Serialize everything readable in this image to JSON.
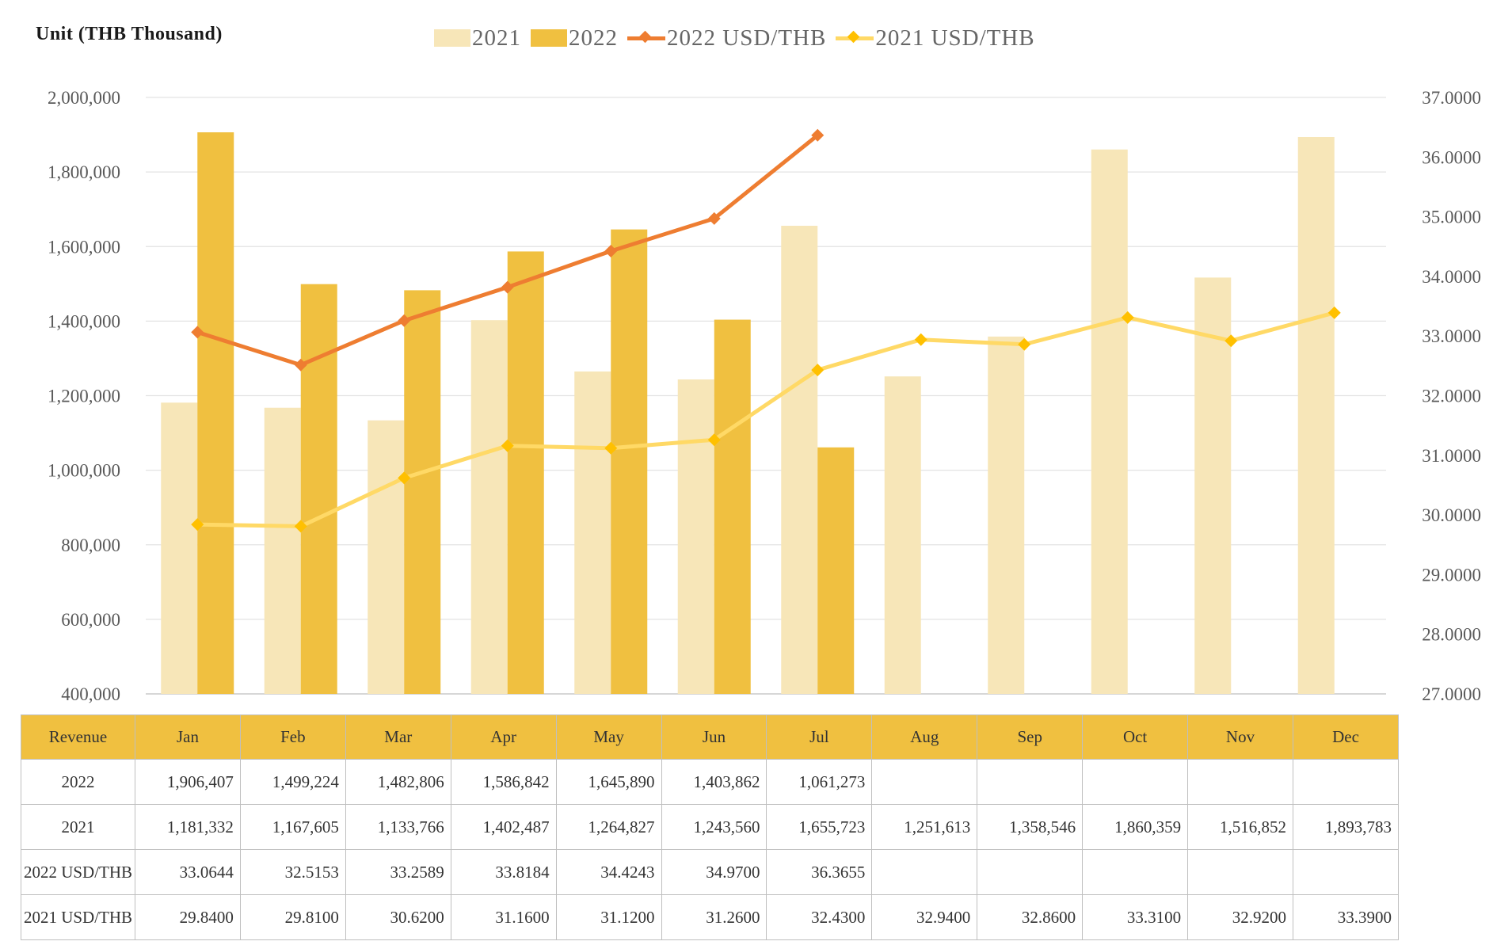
{
  "unit_label": "Unit (THB Thousand)",
  "chart_data": {
    "type": "bar",
    "categories": [
      "Jan",
      "Feb",
      "Mar",
      "Apr",
      "May",
      "Jun",
      "Jul",
      "Aug",
      "Sep",
      "Oct",
      "Nov",
      "Dec"
    ],
    "series": [
      {
        "name": "2021",
        "kind": "bar",
        "color": "#f7e6b8",
        "values": [
          1181332,
          1167605,
          1133766,
          1402487,
          1264827,
          1243560,
          1655723,
          1251613,
          1358546,
          1860359,
          1516852,
          1893783
        ]
      },
      {
        "name": "2022",
        "kind": "bar",
        "color": "#f0c040",
        "values": [
          1906407,
          1499224,
          1482806,
          1586842,
          1645890,
          1403862,
          1061273,
          null,
          null,
          null,
          null,
          null
        ]
      },
      {
        "name": "2022 USD/THB",
        "kind": "line",
        "axis": "right",
        "color": "#ee7d31",
        "values": [
          33.0644,
          32.5153,
          33.2589,
          33.8184,
          34.4243,
          34.97,
          36.3655,
          null,
          null,
          null,
          null,
          null
        ]
      },
      {
        "name": "2021 USD/THB",
        "kind": "line",
        "axis": "right",
        "color": "#ffd966",
        "marker_color": "#ffc000",
        "values": [
          29.84,
          29.81,
          30.62,
          31.16,
          31.12,
          31.26,
          32.43,
          32.94,
          32.86,
          33.31,
          32.92,
          33.39
        ]
      }
    ],
    "y_left": {
      "min": 400000,
      "max": 2000000,
      "step": 200000
    },
    "y_right": {
      "min": 27,
      "max": 37,
      "step": 1
    },
    "y_left_ticks": [
      "400,000",
      "600,000",
      "800,000",
      "1,000,000",
      "1,200,000",
      "1,400,000",
      "1,600,000",
      "1,800,000",
      "2,000,000"
    ],
    "y_right_ticks": [
      "27.0000",
      "28.0000",
      "29.0000",
      "30.0000",
      "31.0000",
      "32.0000",
      "33.0000",
      "34.0000",
      "35.0000",
      "36.0000",
      "37.0000"
    ],
    "grid": true,
    "legend_position": "top"
  },
  "table": {
    "header": [
      "Revenue",
      "Jan",
      "Feb",
      "Mar",
      "Apr",
      "May",
      "Jun",
      "Jul",
      "Aug",
      "Sep",
      "Oct",
      "Nov",
      "Dec"
    ],
    "rows": [
      {
        "label": "2022",
        "cells": [
          "1,906,407",
          "1,499,224",
          "1,482,806",
          "1,586,842",
          "1,645,890",
          "1,403,862",
          "1,061,273",
          "",
          "",
          "",
          "",
          ""
        ]
      },
      {
        "label": "2021",
        "cells": [
          "1,181,332",
          "1,167,605",
          "1,133,766",
          "1,402,487",
          "1,264,827",
          "1,243,560",
          "1,655,723",
          "1,251,613",
          "1,358,546",
          "1,860,359",
          "1,516,852",
          "1,893,783"
        ]
      },
      {
        "label": "2022 USD/THB",
        "cells": [
          "33.0644",
          "32.5153",
          "33.2589",
          "33.8184",
          "34.4243",
          "34.9700",
          "36.3655",
          "",
          "",
          "",
          "",
          ""
        ]
      },
      {
        "label": "2021 USD/THB",
        "cells": [
          "29.8400",
          "29.8100",
          "30.6200",
          "31.1600",
          "31.1200",
          "31.2600",
          "32.4300",
          "32.9400",
          "32.8600",
          "33.3100",
          "32.9200",
          "33.3900"
        ]
      }
    ]
  }
}
